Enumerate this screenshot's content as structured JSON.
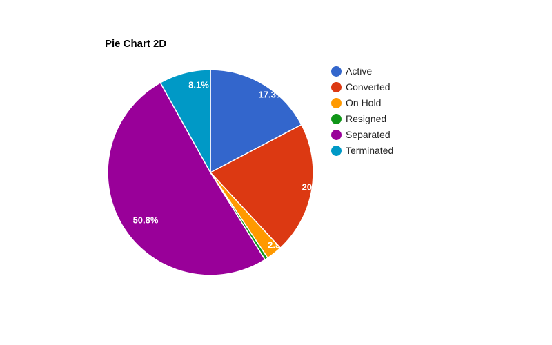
{
  "page": {
    "background": "#ffffff"
  },
  "chart_data": {
    "type": "pie",
    "title": "Pie Chart 2D",
    "legend_position": "right",
    "title_color": "#000000",
    "slice_label_color": "#ffffff",
    "legend_text_color": "#222222",
    "slices": [
      {
        "name": "Active",
        "value": 17.3,
        "label": "17.3%",
        "color": "#3366CC"
      },
      {
        "name": "Converted",
        "value": 20.8,
        "label": "20.8%",
        "color": "#DC3912"
      },
      {
        "name": "On Hold",
        "value": 2.5,
        "label": "2.5%",
        "color": "#FF9900"
      },
      {
        "name": "Resigned",
        "value": 0.5,
        "label": "",
        "color": "#109618"
      },
      {
        "name": "Separated",
        "value": 50.8,
        "label": "50.8%",
        "color": "#990099"
      },
      {
        "name": "Terminated",
        "value": 8.1,
        "label": "8.1%",
        "color": "#0099C6"
      }
    ]
  }
}
